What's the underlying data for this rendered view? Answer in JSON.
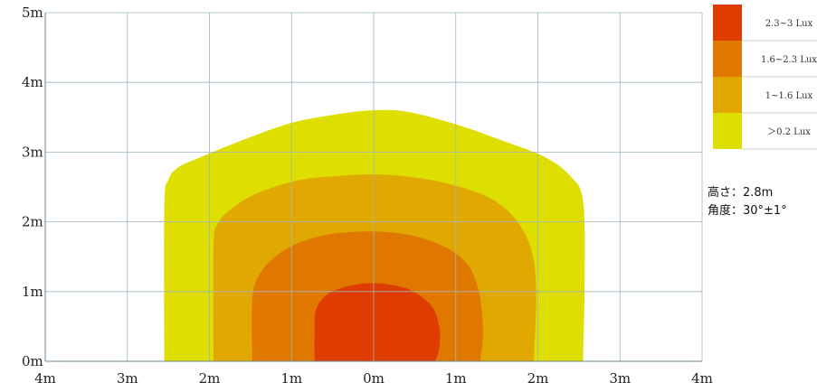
{
  "chart_data": {
    "type": "area",
    "title": "",
    "xlabel": "",
    "ylabel": "",
    "x_ticks": [
      "4m",
      "3m",
      "2m",
      "1m",
      "0m",
      "1m",
      "2m",
      "3m",
      "4m"
    ],
    "y_ticks": [
      "0m",
      "1m",
      "2m",
      "3m",
      "4m",
      "5m"
    ],
    "xlim": [
      -4,
      4
    ],
    "ylim": [
      0,
      5
    ],
    "grid": true,
    "legend_position": "top-right",
    "series": [
      {
        "name": "＞0.2 Lux",
        "color": "#dede00",
        "x": [
          -2.55,
          -2.55,
          -2.5,
          -2.38,
          -2.1,
          -1.6,
          -1.0,
          -0.4,
          0.0,
          0.4,
          1.0,
          1.6,
          2.1,
          2.4,
          2.55,
          2.57,
          2.55
        ],
        "y": [
          0,
          2.2,
          2.6,
          2.78,
          2.93,
          3.17,
          3.42,
          3.55,
          3.6,
          3.58,
          3.4,
          3.15,
          2.92,
          2.65,
          2.3,
          1.2,
          0
        ]
      },
      {
        "name": "1~1.6 Lux",
        "color": "#e0a800",
        "x": [
          -1.95,
          -1.95,
          -1.9,
          -1.72,
          -1.4,
          -0.9,
          -0.4,
          0.0,
          0.4,
          0.9,
          1.4,
          1.72,
          1.92,
          1.98,
          1.95
        ],
        "y": [
          0,
          1.65,
          1.97,
          2.2,
          2.42,
          2.6,
          2.66,
          2.68,
          2.65,
          2.55,
          2.35,
          2.05,
          1.6,
          1.0,
          0
        ]
      },
      {
        "name": "1.6~2.3 Lux",
        "color": "#e07800",
        "x": [
          -1.48,
          -1.48,
          -1.42,
          -1.25,
          -0.95,
          -0.55,
          -0.15,
          0.2,
          0.55,
          0.9,
          1.15,
          1.27,
          1.32,
          1.33,
          1.3
        ],
        "y": [
          0,
          0.85,
          1.18,
          1.45,
          1.68,
          1.82,
          1.86,
          1.85,
          1.78,
          1.62,
          1.38,
          1.05,
          0.7,
          0.35,
          0
        ]
      },
      {
        "name": "2.3~3 Lux",
        "color": "#de3c00",
        "x": [
          -0.72,
          -0.72,
          -0.7,
          -0.55,
          -0.3,
          -0.05,
          0.2,
          0.45,
          0.7,
          0.8,
          0.8,
          0.75
        ],
        "y": [
          0,
          0.4,
          0.75,
          0.97,
          1.08,
          1.12,
          1.1,
          1.02,
          0.8,
          0.5,
          0.2,
          0
        ]
      }
    ]
  },
  "legend": [
    {
      "label": "2.3~3 Lux",
      "color": "#de3c00"
    },
    {
      "label": "1.6~2.3 Lux",
      "color": "#e07800"
    },
    {
      "label": "1~1.6 Lux",
      "color": "#e0a800"
    },
    {
      "label": "＞0.2 Lux",
      "color": "#dede00"
    }
  ],
  "note": {
    "height": "高さ：2.8m",
    "angle": "角度：30°±1°"
  }
}
